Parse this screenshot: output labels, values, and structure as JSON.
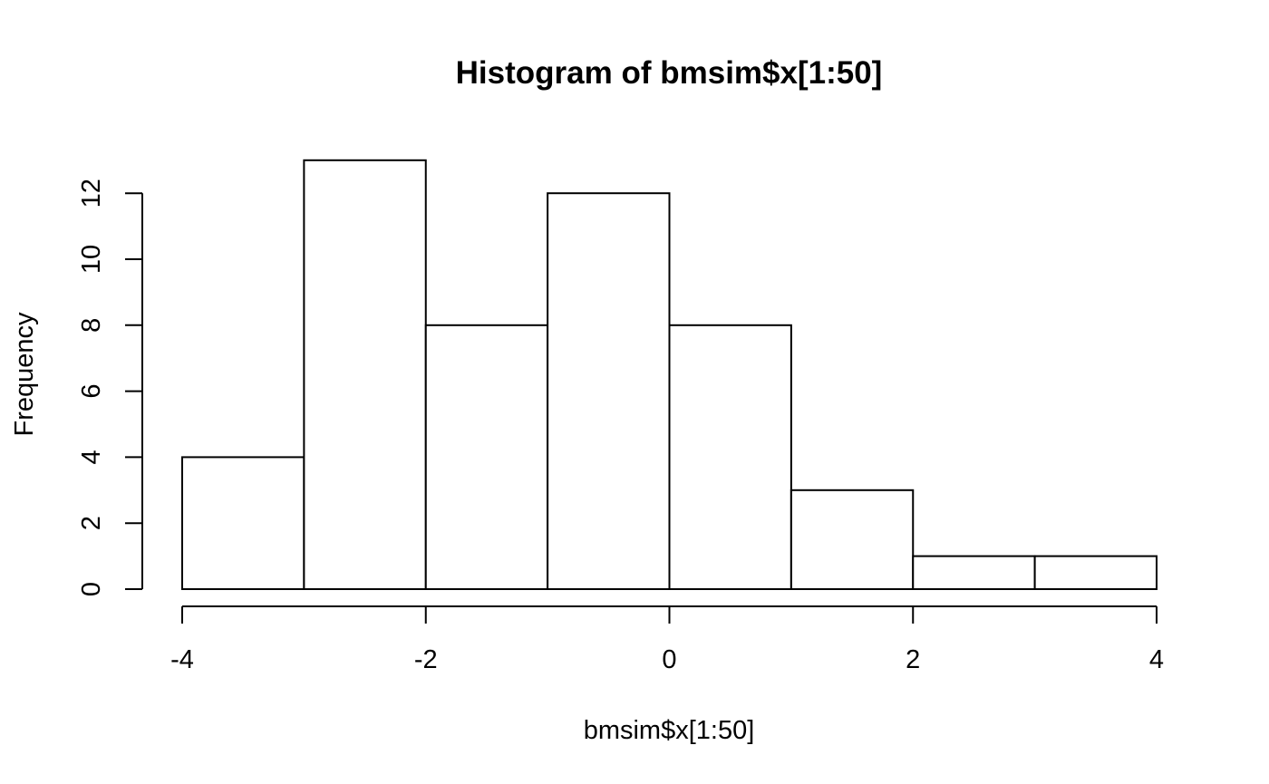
{
  "chart_data": {
    "type": "bar",
    "title": "Histogram of bmsim$x[1:50]",
    "xlabel": "bmsim$x[1:50]",
    "ylabel": "Frequency",
    "bins": [
      {
        "start": -4,
        "end": -3,
        "count": 4
      },
      {
        "start": -3,
        "end": -2,
        "count": 13
      },
      {
        "start": -2,
        "end": -1,
        "count": 8
      },
      {
        "start": -1,
        "end": 0,
        "count": 12
      },
      {
        "start": 0,
        "end": 1,
        "count": 8
      },
      {
        "start": 1,
        "end": 2,
        "count": 3
      },
      {
        "start": 2,
        "end": 3,
        "count": 1
      },
      {
        "start": 3,
        "end": 4,
        "count": 1
      }
    ],
    "xlim": [
      -4,
      4
    ],
    "ylim": [
      0,
      13
    ],
    "x_ticks": [
      "-4",
      "-2",
      "0",
      "2",
      "4"
    ],
    "y_ticks": [
      "0",
      "2",
      "4",
      "6",
      "8",
      "10",
      "12"
    ],
    "grid": false,
    "bar_fill": "#ffffff",
    "bar_stroke": "#000000"
  }
}
